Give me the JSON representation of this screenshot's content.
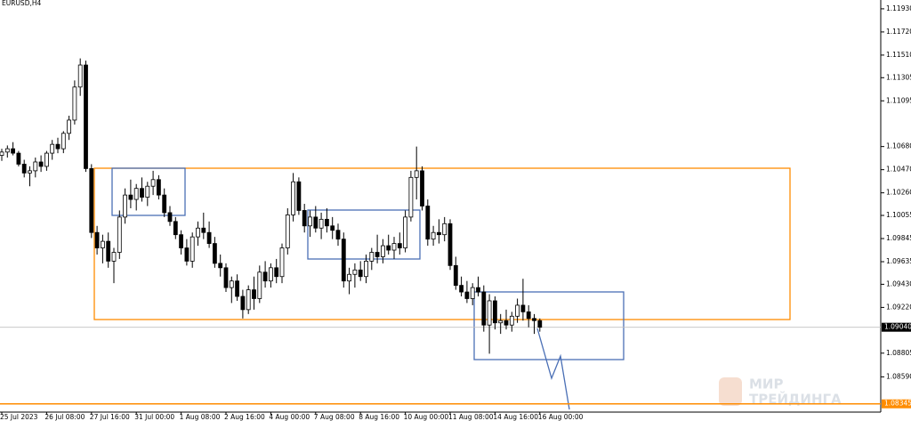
{
  "chart_data": {
    "type": "candlestick",
    "title": "EURUSD,H4",
    "categories": [
      "25 Jul 2023",
      null,
      null,
      null,
      null,
      null,
      null,
      null,
      "26 Jul 08:00",
      null,
      null,
      null,
      null,
      null,
      null,
      null,
      "27 Jul 16:00",
      null,
      null,
      null,
      null,
      null,
      null,
      null,
      "31 Jul 00:00",
      null,
      null,
      null,
      null,
      null,
      null,
      null,
      "1 Aug 08:00",
      null,
      null,
      null,
      null,
      null,
      null,
      null,
      "2 Aug 16:00",
      null,
      null,
      null,
      null,
      null,
      null,
      null,
      "4 Aug 00:00",
      null,
      null,
      null,
      null,
      null,
      null,
      null,
      "7 Aug 08:00",
      null,
      null,
      null,
      null,
      null,
      null,
      null,
      "8 Aug 16:00",
      null,
      null,
      null,
      null,
      null,
      null,
      null,
      "10 Aug 00:00",
      null,
      null,
      null,
      null,
      null,
      null,
      null,
      "11 Aug 08:00",
      null,
      null,
      null,
      null,
      null,
      null,
      null,
      "14 Aug 16:00",
      null,
      null,
      null,
      null,
      null,
      null,
      null,
      "16 Aug 00:00"
    ],
    "ohlc": [
      [
        1.106,
        1.1066,
        1.1055,
        1.1063
      ],
      [
        1.1063,
        1.1069,
        1.1058,
        1.1066
      ],
      [
        1.1066,
        1.1072,
        1.106,
        1.1062
      ],
      [
        1.1062,
        1.1064,
        1.105,
        1.1052
      ],
      [
        1.1052,
        1.1056,
        1.104,
        1.1044
      ],
      [
        1.1044,
        1.105,
        1.1032,
        1.1046
      ],
      [
        1.1046,
        1.1058,
        1.104,
        1.1054
      ],
      [
        1.1054,
        1.106,
        1.1045,
        1.105
      ],
      [
        1.105,
        1.1064,
        1.1046,
        1.1062
      ],
      [
        1.1062,
        1.1074,
        1.1056,
        1.107
      ],
      [
        1.107,
        1.1076,
        1.1062,
        1.1066
      ],
      [
        1.1066,
        1.1082,
        1.1062,
        1.108
      ],
      [
        1.108,
        1.1096,
        1.1074,
        1.1092
      ],
      [
        1.1092,
        1.1128,
        1.1088,
        1.1122
      ],
      [
        1.1122,
        1.1148,
        1.1114,
        1.1142
      ],
      [
        1.1142,
        1.1146,
        1.1045,
        1.1048
      ],
      [
        1.1048,
        1.1052,
        1.0985,
        1.099
      ],
      [
        1.099,
        1.0996,
        1.097,
        1.0976
      ],
      [
        1.0976,
        1.0988,
        1.0962,
        1.0982
      ],
      [
        1.0982,
        1.099,
        1.0958,
        1.0964
      ],
      [
        1.0964,
        1.0976,
        1.0944,
        1.0972
      ],
      [
        1.0972,
        1.101,
        1.0966,
        1.1004
      ],
      [
        1.1004,
        1.103,
        1.0998,
        1.1024
      ],
      [
        1.1024,
        1.1038,
        1.1012,
        1.102
      ],
      [
        1.102,
        1.1034,
        1.101,
        1.103
      ],
      [
        1.103,
        1.104,
        1.1018,
        1.1022
      ],
      [
        1.1022,
        1.1036,
        1.1014,
        1.1032
      ],
      [
        1.1032,
        1.1046,
        1.1024,
        1.1038
      ],
      [
        1.1038,
        1.1042,
        1.102,
        1.1024
      ],
      [
        1.1024,
        1.103,
        1.1004,
        1.1008
      ],
      [
        1.1008,
        1.1014,
        1.0996,
        1.1
      ],
      [
        1.1,
        1.1004,
        1.0984,
        1.0988
      ],
      [
        1.0988,
        1.0992,
        1.097,
        1.0976
      ],
      [
        1.0976,
        1.0984,
        1.096,
        1.0964
      ],
      [
        1.0964,
        1.099,
        1.0958,
        1.0986
      ],
      [
        1.0986,
        1.1,
        1.0978,
        1.0994
      ],
      [
        1.0994,
        1.1008,
        1.0984,
        1.099
      ],
      [
        1.099,
        1.1,
        1.0976,
        1.098
      ],
      [
        1.098,
        1.0986,
        1.0958,
        1.0962
      ],
      [
        1.0962,
        1.097,
        1.095,
        1.0958
      ],
      [
        1.0958,
        1.0962,
        1.0936,
        1.094
      ],
      [
        1.094,
        1.095,
        1.0926,
        1.0946
      ],
      [
        1.0946,
        1.0952,
        1.0928,
        1.0932
      ],
      [
        1.0932,
        1.0938,
        1.0912,
        1.092
      ],
      [
        1.092,
        1.0942,
        1.0916,
        1.0938
      ],
      [
        1.0938,
        1.095,
        1.092,
        1.093
      ],
      [
        1.093,
        1.096,
        1.0926,
        1.0954
      ],
      [
        1.0954,
        1.0964,
        1.094,
        1.0946
      ],
      [
        1.0946,
        1.0962,
        1.094,
        1.0958
      ],
      [
        1.0958,
        1.0966,
        1.0944,
        1.095
      ],
      [
        1.095,
        1.098,
        1.0944,
        1.0976
      ],
      [
        1.0976,
        1.1012,
        1.097,
        1.1006
      ],
      [
        1.1006,
        1.1044,
        1.1,
        1.1036
      ],
      [
        1.1036,
        1.104,
        1.1006,
        1.101
      ],
      [
        1.101,
        1.1016,
        1.099,
        1.0996
      ],
      [
        1.0996,
        1.101,
        1.0986,
        1.1004
      ],
      [
        1.1004,
        1.1014,
        1.099,
        1.0994
      ],
      [
        1.0994,
        1.1008,
        1.0984,
        1.1002
      ],
      [
        1.1002,
        1.1012,
        1.099,
        1.0996
      ],
      [
        1.0996,
        1.1004,
        1.0984,
        1.0992
      ],
      [
        1.0992,
        1.0998,
        1.0978,
        1.0984
      ],
      [
        1.0984,
        1.099,
        1.094,
        1.0946
      ],
      [
        1.0946,
        1.0958,
        1.0934,
        1.0952
      ],
      [
        1.0952,
        1.0962,
        1.094,
        1.0956
      ],
      [
        1.0956,
        1.0964,
        1.0946,
        1.095
      ],
      [
        1.095,
        1.097,
        1.0944,
        1.0964
      ],
      [
        1.0964,
        1.0976,
        1.0956,
        1.0972
      ],
      [
        1.0972,
        1.0988,
        1.0962,
        1.0968
      ],
      [
        1.0968,
        1.0984,
        1.0962,
        1.0978
      ],
      [
        1.0978,
        1.0988,
        1.097,
        1.0974
      ],
      [
        1.0974,
        1.0986,
        1.0966,
        1.098
      ],
      [
        1.098,
        1.099,
        1.097,
        1.0976
      ],
      [
        1.0976,
        1.101,
        1.0972,
        1.1004
      ],
      [
        1.1004,
        1.1046,
        1.1,
        1.104
      ],
      [
        1.104,
        1.1068,
        1.102,
        1.1046
      ],
      [
        1.1046,
        1.105,
        1.101,
        1.1014
      ],
      [
        1.1014,
        1.102,
        1.0978,
        1.0984
      ],
      [
        1.0984,
        1.0996,
        1.0978,
        1.099
      ],
      [
        1.099,
        1.1002,
        1.098,
        1.0988
      ],
      [
        1.0988,
        1.1004,
        1.0982,
        1.0998
      ],
      [
        1.0998,
        1.1002,
        1.0956,
        1.096
      ],
      [
        1.096,
        1.0968,
        1.0938,
        1.0942
      ],
      [
        1.0942,
        1.095,
        1.0932,
        1.0936
      ],
      [
        1.0936,
        1.0946,
        1.0926,
        1.093
      ],
      [
        1.093,
        1.0944,
        1.0924,
        1.094
      ],
      [
        1.094,
        1.095,
        1.0932,
        1.0936
      ],
      [
        1.0936,
        1.0942,
        1.09,
        1.0906
      ],
      [
        1.0906,
        1.0934,
        1.088,
        1.0928
      ],
      [
        1.0928,
        1.0932,
        1.0902,
        1.0908
      ],
      [
        1.0908,
        1.0916,
        1.0898,
        1.091
      ],
      [
        1.091,
        1.092,
        1.0902,
        1.0906
      ],
      [
        1.0906,
        1.0918,
        1.09,
        1.0914
      ],
      [
        1.0914,
        1.093,
        1.0908,
        1.0924
      ],
      [
        1.0924,
        1.0948,
        1.091,
        1.0918
      ],
      [
        1.0918,
        1.0924,
        1.0904,
        1.0912
      ],
      [
        1.0912,
        1.0916,
        1.0898,
        1.091
      ],
      [
        1.091,
        1.0912,
        1.09,
        1.0904
      ]
    ],
    "up_color": "#ffffff",
    "down_color": "#000000",
    "ylim": [
      1.0827,
      1.1201
    ],
    "yticks": [
      {
        "value": 1.1193,
        "label": "1.11930"
      },
      {
        "value": 1.1172,
        "label": "1.11720"
      },
      {
        "value": 1.1151,
        "label": "1.11510"
      },
      {
        "value": 1.11305,
        "label": "1.11305"
      },
      {
        "value": 1.11095,
        "label": "1.11095"
      },
      {
        "value": 1.1068,
        "label": "1.10680"
      },
      {
        "value": 1.1047,
        "label": "1.10470"
      },
      {
        "value": 1.1026,
        "label": "1.10260"
      },
      {
        "value": 1.10055,
        "label": "1.10055"
      },
      {
        "value": 1.09845,
        "label": "1.09845"
      },
      {
        "value": 1.09635,
        "label": "1.09635"
      },
      {
        "value": 1.0943,
        "label": "1.09430"
      },
      {
        "value": 1.0922,
        "label": "1.09220"
      },
      {
        "value": 1.08805,
        "label": "1.08805"
      },
      {
        "value": 1.0859,
        "label": "1.08590"
      }
    ],
    "price_lines": [
      {
        "value": 1.0904,
        "label": "1.09040",
        "color": "#c0c0c0",
        "label_bg": "#000000"
      },
      {
        "value": 1.08345,
        "label": "1.08345",
        "color": "#ff8c00",
        "label_bg": "#ff8c00"
      }
    ],
    "watermark": [
      "МИР",
      "ТРЕЙДИНГА"
    ]
  }
}
